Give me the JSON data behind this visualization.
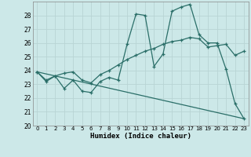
{
  "xlabel": "Humidex (Indice chaleur)",
  "xlim": [
    -0.5,
    23.5
  ],
  "ylim": [
    20,
    29
  ],
  "yticks": [
    20,
    21,
    22,
    23,
    24,
    25,
    26,
    27,
    28
  ],
  "xticks": [
    0,
    1,
    2,
    3,
    4,
    5,
    6,
    7,
    8,
    9,
    10,
    11,
    12,
    13,
    14,
    15,
    16,
    17,
    18,
    19,
    20,
    21,
    22,
    23
  ],
  "bg_color": "#cce8e8",
  "line_color": "#2a6e68",
  "grid_color": "#b0d0d0",
  "line1_x": [
    0,
    1,
    2,
    3,
    4,
    5,
    6,
    7,
    8,
    9,
    10,
    11,
    12,
    13,
    14,
    15,
    16,
    17,
    18,
    19,
    20,
    21,
    22,
    23
  ],
  "line1_y": [
    23.9,
    23.2,
    23.6,
    22.7,
    23.3,
    22.5,
    22.4,
    23.2,
    23.5,
    23.3,
    25.9,
    28.1,
    28.0,
    24.3,
    25.2,
    28.3,
    28.6,
    28.8,
    26.6,
    26.0,
    26.0,
    24.1,
    21.6,
    20.5
  ],
  "line2_x": [
    0,
    1,
    2,
    3,
    4,
    5,
    6,
    7,
    8,
    9,
    10,
    11,
    12,
    13,
    14,
    15,
    16,
    17,
    18,
    19,
    20,
    21,
    22,
    23
  ],
  "line2_y": [
    23.9,
    23.3,
    23.6,
    23.8,
    23.9,
    23.3,
    23.1,
    23.7,
    24.0,
    24.4,
    24.8,
    25.1,
    25.4,
    25.6,
    25.9,
    26.1,
    26.2,
    26.4,
    26.3,
    25.7,
    25.8,
    25.9,
    25.1,
    25.4
  ],
  "line3_x": [
    0,
    21,
    23
  ],
  "line3_y": [
    23.9,
    20.8,
    20.5
  ]
}
